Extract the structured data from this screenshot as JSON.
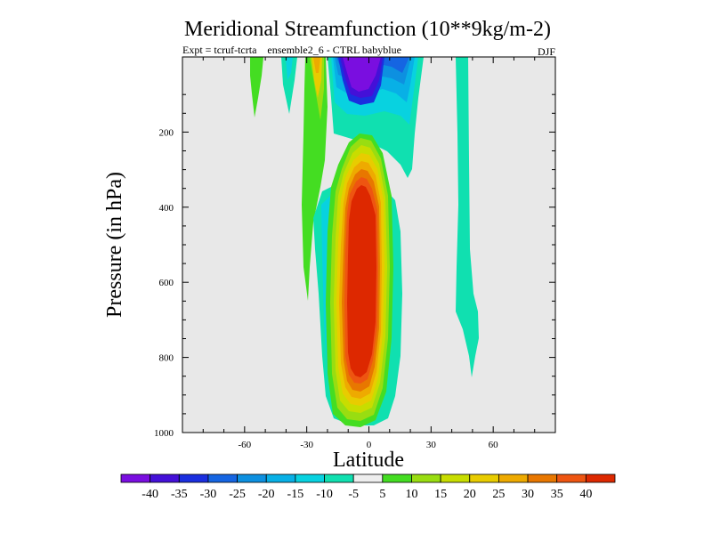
{
  "chart_data": {
    "type": "contour",
    "title": "Meridional Streamfunction (10**9kg/m-2)",
    "subtitle_left": "Expt = tcruf-tcrta    ensemble2_6 - CTRL babyblue",
    "subtitle_right": "DJF",
    "xlabel": "Latitude",
    "ylabel": "Pressure (in hPa)",
    "xlim": [
      -90,
      90
    ],
    "ylim": [
      0,
      1000
    ],
    "y_inverted": true,
    "x_ticks": [
      -60,
      -30,
      0,
      30,
      60
    ],
    "x_tick_labels": [
      "-60",
      "-30",
      "0",
      "30",
      "60"
    ],
    "y_ticks": [
      200,
      400,
      600,
      800,
      1000
    ],
    "y_tick_labels": [
      "200",
      "400",
      "600",
      "800",
      "1000"
    ],
    "background_color": "#e8e8e8",
    "colorbar": {
      "levels": [
        -40,
        -35,
        -30,
        -25,
        -20,
        -15,
        -10,
        -5,
        5,
        10,
        15,
        20,
        25,
        30,
        35,
        40
      ],
      "labels": [
        "-40",
        "-35",
        "-30",
        "-25",
        "-20",
        "-15",
        "-10",
        "-5",
        "5",
        "10",
        "15",
        "20",
        "25",
        "30",
        "35",
        "40"
      ],
      "colors": [
        "#7a0ee0",
        "#4410d8",
        "#1a2fdf",
        "#1565e2",
        "#0d90e0",
        "#08b0e6",
        "#08d2e0",
        "#10e0b0",
        "#eeeeee",
        "#44dd22",
        "#99dd11",
        "#c8dd00",
        "#e8cc00",
        "#eeaa00",
        "#e87700",
        "#ee5511",
        "#dd2800"
      ]
    },
    "features": [
      {
        "name": "positive-cell-equatorial",
        "sign": "positive",
        "center_lat": -2,
        "center_pressure": 560,
        "max_level": 40
      },
      {
        "name": "negative-cell-upper-equatorial",
        "sign": "negative",
        "center_lat": -5,
        "center_pressure": 40,
        "min_level": -40
      },
      {
        "name": "positive-band-sh-midlat",
        "sign": "positive",
        "center_lat": -24,
        "center_pressure": 300,
        "max_level": 5
      },
      {
        "name": "negative-band-nh-50",
        "sign": "negative",
        "center_lat": 47,
        "center_pressure": 450,
        "min_level": -5
      },
      {
        "name": "positive-streak-sh-55",
        "sign": "positive",
        "center_lat": -53,
        "center_pressure": 60,
        "max_level": 5
      },
      {
        "name": "negative-streak-sh-35",
        "sign": "negative",
        "center_lat": -36,
        "center_pressure": 60,
        "min_level": -5
      }
    ]
  }
}
